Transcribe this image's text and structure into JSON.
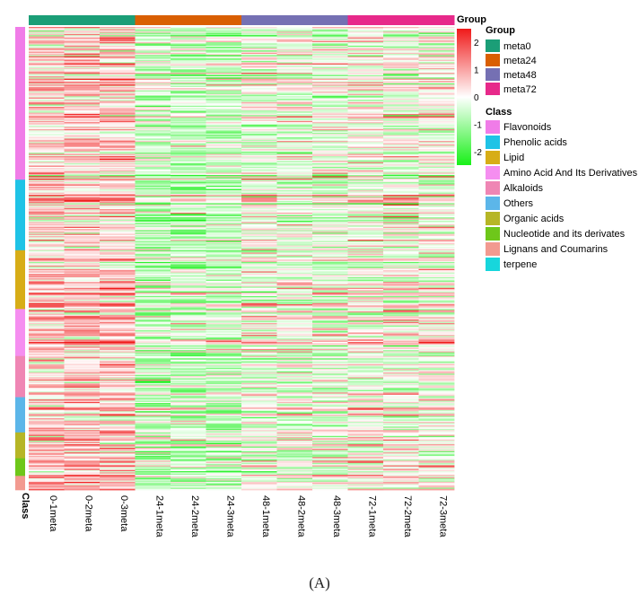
{
  "chart_data": {
    "type": "heatmap",
    "samples": [
      "0-1meta",
      "0-2meta",
      "0-3meta",
      "24-1meta",
      "24-2meta",
      "24-3meta",
      "48-1meta",
      "48-2meta",
      "48-3meta",
      "72-1meta",
      "72-2meta",
      "72-3meta"
    ],
    "sample_groups": [
      "meta0",
      "meta0",
      "meta0",
      "meta24",
      "meta24",
      "meta24",
      "meta48",
      "meta48",
      "meta48",
      "meta72",
      "meta72",
      "meta72"
    ],
    "groups": [
      {
        "name": "meta0",
        "color": "#1b9e77"
      },
      {
        "name": "meta24",
        "color": "#d95f02"
      },
      {
        "name": "meta48",
        "color": "#7570b3"
      },
      {
        "name": "meta72",
        "color": "#e7298a"
      }
    ],
    "classes": [
      {
        "name": "Flavonoids",
        "color": "#f07ce8"
      },
      {
        "name": "Phenolic acids",
        "color": "#1fc3e6"
      },
      {
        "name": "Lipid",
        "color": "#d7ad17"
      },
      {
        "name": "Amino Acid And Its Derivatives",
        "color": "#f58ef0"
      },
      {
        "name": "Alkaloids",
        "color": "#ef86b4"
      },
      {
        "name": "Others",
        "color": "#5cb6e9"
      },
      {
        "name": "Organic acids",
        "color": "#b6b626"
      },
      {
        "name": "Nucleotide and its derivates",
        "color": "#6ec71a"
      },
      {
        "name": "Lignans and Coumarins",
        "color": "#f29a90"
      },
      {
        "name": "terpene",
        "color": "#17d6dc"
      }
    ],
    "row_classes": [
      {
        "class": "Flavonoids",
        "rows": 130
      },
      {
        "class": "Phenolic acids",
        "rows": 60
      },
      {
        "class": "Lipid",
        "rows": 50
      },
      {
        "class": "Amino Acid And Its Derivatives",
        "rows": 40
      },
      {
        "class": "Alkaloids",
        "rows": 35
      },
      {
        "class": "Others",
        "rows": 30
      },
      {
        "class": "Organic acids",
        "rows": 22
      },
      {
        "class": "Nucleotide and its derivates",
        "rows": 15
      },
      {
        "class": "Lignans and Coumarins",
        "rows": 12
      }
    ],
    "group_mean_zscore": {
      "meta0": 0.6,
      "meta24": -0.5,
      "meta48": -0.1,
      "meta72": 0.0
    },
    "color_scale": {
      "min": -2.5,
      "max": 2.5,
      "low": "#18f018",
      "mid": "#ffffff",
      "high": "#f01a1a"
    },
    "colorbar_ticks": [
      2,
      1,
      0,
      -1,
      -2
    ],
    "annotation_labels": {
      "column": "Group",
      "row": "Class"
    },
    "legend_titles": {
      "group": "Group",
      "class": "Class"
    }
  },
  "panel_label": "(A)"
}
